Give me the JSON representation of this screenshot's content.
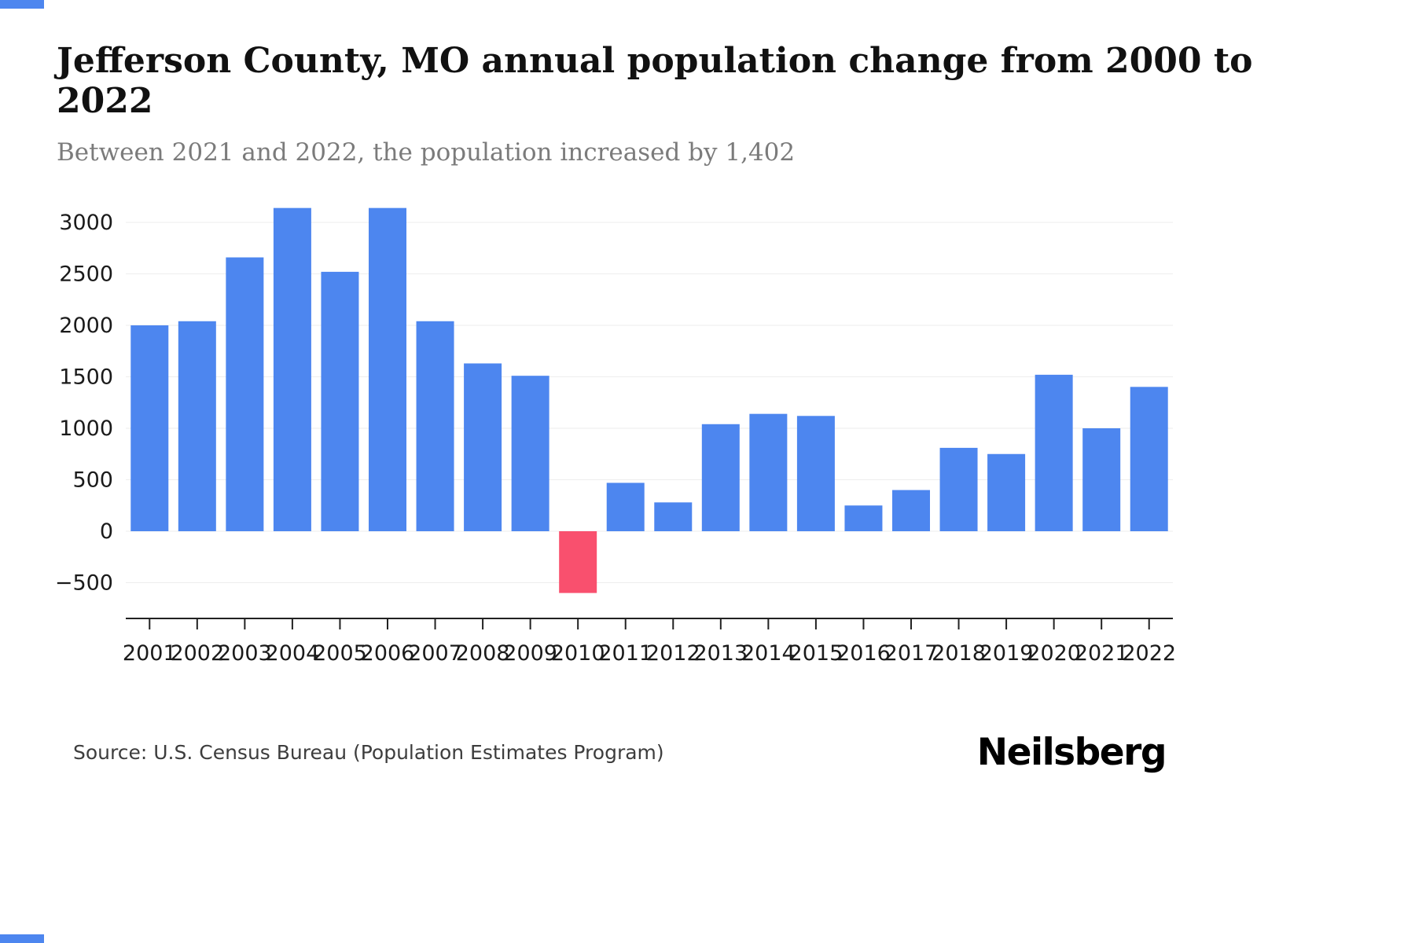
{
  "header": {
    "title": "Jefferson County, MO annual population change from 2000 to 2022",
    "subtitle": "Between 2021 and 2022, the population increased by 1,402"
  },
  "footer": {
    "source": "Source: U.S. Census Bureau (Population Estimates Program)",
    "brand": "Neilsberg"
  },
  "brand": {
    "accent": "#4d86ef"
  },
  "chart_data": {
    "type": "bar",
    "title": "Jefferson County, MO annual population change from 2000 to 2022",
    "subtitle": "Between 2021 and 2022, the population increased by 1,402",
    "series_name": "Annual population change",
    "categories": [
      "2001",
      "2002",
      "2003",
      "2004",
      "2005",
      "2006",
      "2007",
      "2008",
      "2009",
      "2010",
      "2011",
      "2012",
      "2013",
      "2014",
      "2015",
      "2016",
      "2017",
      "2018",
      "2019",
      "2020",
      "2021",
      "2022"
    ],
    "values": [
      2000,
      2040,
      2660,
      3140,
      2520,
      3140,
      2040,
      1630,
      1510,
      -600,
      470,
      280,
      1040,
      1140,
      1120,
      250,
      400,
      810,
      750,
      1520,
      1000,
      1402
    ],
    "yticks": [
      -500,
      0,
      500,
      1000,
      1500,
      2000,
      2500,
      3000
    ],
    "ylim": [
      -700,
      3300
    ],
    "xlabel": "",
    "ylabel": "",
    "grid": "horizontal",
    "legend": "none",
    "colors": {
      "positive": "#4d86ef",
      "negative": "#f9506e"
    },
    "gridline_color": "#ededed",
    "axis_color": "#222222",
    "source": "Source: U.S. Census Bureau (Population Estimates Program)"
  }
}
